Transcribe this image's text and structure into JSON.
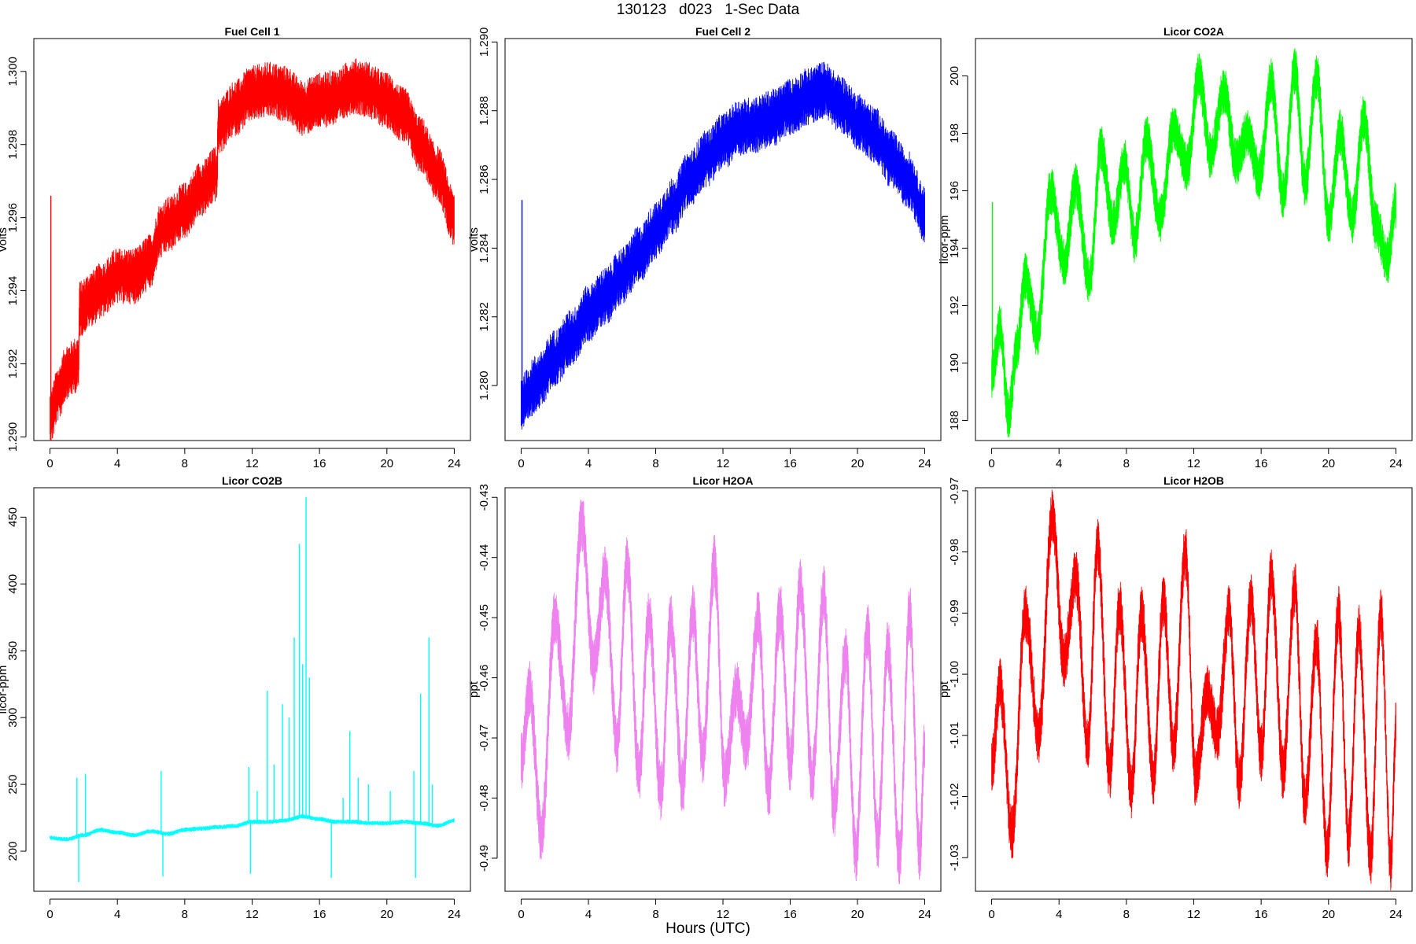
{
  "header": {
    "title": "130123   d023   1-Sec Data"
  },
  "footer": {
    "xlabel": "Hours (UTC)"
  },
  "chart_data": [
    {
      "type": "line",
      "title": "Fuel Cell 1",
      "ylabel": "volts",
      "color": "#ff0000",
      "xlim": [
        0,
        24
      ],
      "ylim": [
        1.2899,
        1.3009
      ],
      "xticks": [
        0,
        4,
        8,
        12,
        16,
        20,
        24
      ],
      "yticks": [
        "1.290",
        "1.292",
        "1.294",
        "1.296",
        "1.298",
        "1.300"
      ],
      "noise": 0.00055,
      "spikes": [
        {
          "x": 0.05,
          "y": 1.2966
        }
      ],
      "x": [
        0,
        0.5,
        1,
        1.7,
        1.75,
        2.5,
        3,
        4,
        5,
        6,
        6.5,
        7,
        8,
        9,
        9.9,
        10,
        11,
        12,
        13,
        14,
        15,
        16,
        17,
        18,
        19,
        19.1,
        20,
        21,
        22,
        23,
        24
      ],
      "y": [
        1.2905,
        1.2912,
        1.2918,
        1.292,
        1.2935,
        1.2938,
        1.294,
        1.2944,
        1.2944,
        1.2948,
        1.2956,
        1.2958,
        1.2962,
        1.2968,
        1.2972,
        1.2985,
        1.299,
        1.2994,
        1.2995,
        1.2994,
        1.299,
        1.2992,
        1.2993,
        1.2996,
        1.2995,
        1.2994,
        1.2992,
        1.2988,
        1.298,
        1.2972,
        1.296
      ]
    },
    {
      "type": "line",
      "title": "Fuel Cell 2",
      "ylabel": "volts",
      "color": "#0000ff",
      "xlim": [
        0,
        24
      ],
      "ylim": [
        1.2784,
        1.2901
      ],
      "xticks": [
        0,
        4,
        8,
        12,
        16,
        20,
        24
      ],
      "yticks": [
        "1.280",
        "1.282",
        "1.284",
        "1.286",
        "1.288",
        "1.290"
      ],
      "noise": 0.0006,
      "spikes": [
        {
          "x": 0.05,
          "y": 1.2854
        }
      ],
      "x": [
        0,
        1,
        2,
        3,
        4,
        5,
        6,
        7,
        8,
        9,
        10,
        11,
        12,
        13,
        14,
        15,
        16,
        17,
        18,
        19,
        20,
        21,
        22,
        23,
        24
      ],
      "y": [
        1.2795,
        1.2801,
        1.2808,
        1.2814,
        1.2821,
        1.2826,
        1.2832,
        1.2838,
        1.2845,
        1.2852,
        1.286,
        1.2866,
        1.2871,
        1.2875,
        1.2876,
        1.2878,
        1.2881,
        1.2884,
        1.2886,
        1.2882,
        1.2877,
        1.2873,
        1.2866,
        1.286,
        1.285
      ]
    },
    {
      "type": "line",
      "title": "Licor CO2A",
      "ylabel": "licor-ppm",
      "color": "#00ff00",
      "xlim": [
        0,
        24
      ],
      "ylim": [
        187.3,
        201.3
      ],
      "xticks": [
        0,
        4,
        8,
        12,
        16,
        20,
        24
      ],
      "yticks": [
        "188",
        "190",
        "192",
        "194",
        "196",
        "198",
        "200"
      ],
      "noise": 0.6,
      "spikes": [
        {
          "x": 0.05,
          "y": 195.6
        }
      ],
      "x": [
        0,
        0.5,
        1,
        1.5,
        2,
        2.7,
        3.5,
        4.3,
        5,
        5.8,
        6.5,
        7.2,
        7.9,
        8.5,
        9.2,
        10,
        10.8,
        11.6,
        12.3,
        13,
        13.8,
        14.5,
        15.2,
        15.9,
        16.6,
        17.3,
        18,
        18.6,
        19.3,
        20,
        20.7,
        21.4,
        22.1,
        22.8,
        23.5,
        24
      ],
      "y": [
        189.5,
        191.2,
        188.2,
        190.5,
        193.0,
        191.0,
        196.0,
        193.5,
        196.2,
        192.8,
        197.5,
        194.8,
        197.0,
        194.3,
        197.8,
        195.0,
        198.2,
        196.8,
        200.0,
        197.2,
        199.5,
        197.0,
        198.0,
        196.5,
        199.8,
        195.8,
        200.2,
        196.2,
        200.0,
        195.0,
        198.0,
        195.0,
        198.5,
        194.8,
        193.6,
        195.5
      ]
    },
    {
      "type": "line",
      "title": "Licor CO2B",
      "ylabel": "licor-ppm",
      "color": "#00ffff",
      "xlim": [
        0,
        24
      ],
      "ylim": [
        170,
        472
      ],
      "xticks": [
        0,
        4,
        8,
        12,
        16,
        20,
        24
      ],
      "yticks": [
        "200",
        "250",
        "300",
        "350",
        "400",
        "450"
      ],
      "noise": 1.2,
      "spikes": [
        {
          "x": 1.6,
          "y": 255
        },
        {
          "x": 1.7,
          "y": 177
        },
        {
          "x": 2.1,
          "y": 258
        },
        {
          "x": 6.6,
          "y": 260
        },
        {
          "x": 6.7,
          "y": 181
        },
        {
          "x": 11.8,
          "y": 263
        },
        {
          "x": 11.9,
          "y": 183
        },
        {
          "x": 12.3,
          "y": 245
        },
        {
          "x": 12.9,
          "y": 320
        },
        {
          "x": 13.3,
          "y": 265
        },
        {
          "x": 13.8,
          "y": 310
        },
        {
          "x": 14.2,
          "y": 300
        },
        {
          "x": 14.5,
          "y": 360
        },
        {
          "x": 14.8,
          "y": 430
        },
        {
          "x": 15.0,
          "y": 340
        },
        {
          "x": 15.2,
          "y": 465
        },
        {
          "x": 15.4,
          "y": 330
        },
        {
          "x": 16.7,
          "y": 180
        },
        {
          "x": 17.4,
          "y": 240
        },
        {
          "x": 17.8,
          "y": 290
        },
        {
          "x": 18.3,
          "y": 255
        },
        {
          "x": 18.9,
          "y": 250
        },
        {
          "x": 20.2,
          "y": 245
        },
        {
          "x": 21.6,
          "y": 260
        },
        {
          "x": 21.7,
          "y": 180
        },
        {
          "x": 22.0,
          "y": 318
        },
        {
          "x": 22.5,
          "y": 360
        },
        {
          "x": 22.7,
          "y": 250
        }
      ],
      "x": [
        0,
        1,
        2,
        3,
        4,
        5,
        6,
        7,
        8,
        9,
        10,
        11,
        12,
        13,
        14,
        15,
        16,
        17,
        18,
        19,
        20,
        21,
        22,
        23,
        24
      ],
      "y": [
        210,
        209,
        212,
        216,
        214,
        212,
        215,
        213,
        216,
        217,
        218,
        219,
        222,
        222,
        223,
        226,
        224,
        222,
        222,
        221,
        221,
        222,
        221,
        219,
        223
      ]
    },
    {
      "type": "line",
      "title": "Licor H2OA",
      "ylabel": "ppt",
      "color": "#ee82ee",
      "xlim": [
        0,
        24
      ],
      "ylim": [
        -0.4955,
        -0.4284
      ],
      "xticks": [
        0,
        4,
        8,
        12,
        16,
        20,
        24
      ],
      "yticks": [
        "-0.49",
        "-0.48",
        "-0.47",
        "-0.46",
        "-0.45",
        "-0.44",
        "-0.43"
      ],
      "noise": 0.0035,
      "spikes": [],
      "x": [
        0,
        0.5,
        1.2,
        2.0,
        2.8,
        3.6,
        4.3,
        5.0,
        5.7,
        6.3,
        7.0,
        7.6,
        8.3,
        8.9,
        9.6,
        10.2,
        10.8,
        11.5,
        12.1,
        12.8,
        13.4,
        14.1,
        14.7,
        15.4,
        16.0,
        16.6,
        17.3,
        18.0,
        18.6,
        19.3,
        19.9,
        20.6,
        21.2,
        21.8,
        22.5,
        23.1,
        23.7,
        24
      ],
      "y": [
        -0.474,
        -0.462,
        -0.486,
        -0.45,
        -0.469,
        -0.434,
        -0.458,
        -0.443,
        -0.471,
        -0.441,
        -0.476,
        -0.45,
        -0.479,
        -0.451,
        -0.478,
        -0.449,
        -0.473,
        -0.441,
        -0.477,
        -0.462,
        -0.471,
        -0.45,
        -0.479,
        -0.449,
        -0.474,
        -0.445,
        -0.477,
        -0.446,
        -0.482,
        -0.456,
        -0.489,
        -0.452,
        -0.487,
        -0.455,
        -0.49,
        -0.449,
        -0.489,
        -0.471
      ]
    },
    {
      "type": "line",
      "title": "Licor H2OB",
      "ylabel": "ppt",
      "color": "#ff0000",
      "xlim": [
        0,
        24
      ],
      "ylim": [
        -1.0355,
        -0.9695
      ],
      "xticks": [
        0,
        4,
        8,
        12,
        16,
        20,
        24
      ],
      "yticks": [
        "-1.03",
        "-1.02",
        "-1.01",
        "-1.00",
        "-0.99",
        "-0.98",
        "-0.97"
      ],
      "noise": 0.0033,
      "spikes": [],
      "x": [
        0,
        0.5,
        1.2,
        2.0,
        2.8,
        3.6,
        4.3,
        5.0,
        5.7,
        6.3,
        7.0,
        7.6,
        8.3,
        8.9,
        9.6,
        10.2,
        10.8,
        11.5,
        12.1,
        12.8,
        13.4,
        14.1,
        14.7,
        15.4,
        16.0,
        16.6,
        17.3,
        18.0,
        18.6,
        19.3,
        19.9,
        20.6,
        21.2,
        21.8,
        22.5,
        23.1,
        23.7,
        24
      ],
      "y": [
        -1.015,
        -1.002,
        -1.026,
        -0.99,
        -1.01,
        -0.974,
        -0.998,
        -0.984,
        -1.012,
        -0.979,
        -1.016,
        -0.989,
        -1.019,
        -0.99,
        -1.017,
        -0.988,
        -1.012,
        -0.98,
        -1.017,
        -1.003,
        -1.01,
        -0.99,
        -1.018,
        -0.988,
        -1.013,
        -0.984,
        -1.016,
        -0.986,
        -1.021,
        -0.995,
        -1.029,
        -0.99,
        -1.027,
        -0.993,
        -1.03,
        -0.99,
        -1.031,
        -1.009
      ]
    }
  ]
}
